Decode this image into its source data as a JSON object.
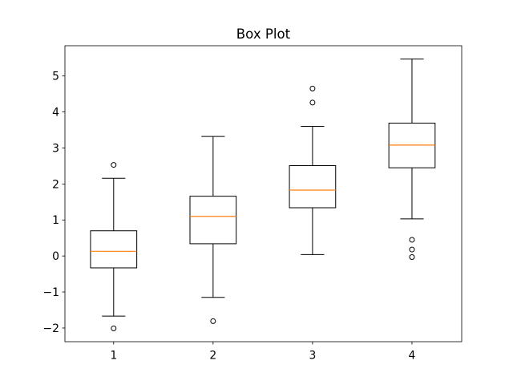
{
  "chart_data": {
    "type": "box",
    "title": "Box Plot",
    "xlabel": "",
    "ylabel": "",
    "xlim": [
      0.51,
      4.5
    ],
    "ylim": [
      -2.38,
      5.84
    ],
    "xticks": [
      1,
      2,
      3,
      4
    ],
    "xtick_labels": [
      "1",
      "2",
      "3",
      "4"
    ],
    "yticks": [
      -2,
      -1,
      0,
      1,
      2,
      3,
      4,
      5
    ],
    "ytick_labels": [
      "−2",
      "−1",
      "0",
      "1",
      "2",
      "3",
      "4",
      "5"
    ],
    "grid": false,
    "legend": null,
    "box_width": 0.465,
    "cap_width": 0.235,
    "flier_radius_px": 3,
    "colors": {
      "box_edge": "#000000",
      "whisker": "#000000",
      "median": "#ff7f0e",
      "flier_edge": "#000000",
      "text": "#000000",
      "background": "#ffffff"
    },
    "boxes": [
      {
        "position": 1,
        "whislo": -1.67,
        "q1": -0.33,
        "med": 0.13,
        "q3": 0.7,
        "whishi": 2.16,
        "fliers": [
          2.53,
          -2.01
        ]
      },
      {
        "position": 2,
        "whislo": -1.15,
        "q1": 0.34,
        "med": 1.1,
        "q3": 1.66,
        "whishi": 3.32,
        "fliers": [
          -1.81
        ]
      },
      {
        "position": 3,
        "whislo": 0.04,
        "q1": 1.34,
        "med": 1.83,
        "q3": 2.51,
        "whishi": 3.6,
        "fliers": [
          4.26,
          4.65
        ]
      },
      {
        "position": 4,
        "whislo": 1.03,
        "q1": 2.45,
        "med": 3.08,
        "q3": 3.69,
        "whishi": 5.47,
        "fliers": [
          0.45,
          0.18,
          -0.03
        ]
      }
    ]
  }
}
